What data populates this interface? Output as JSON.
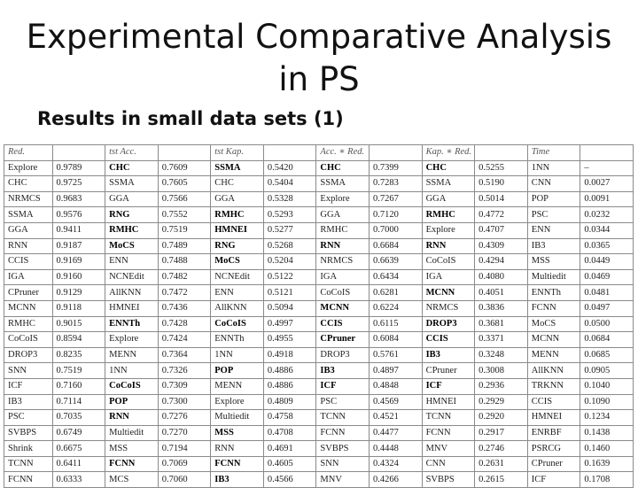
{
  "slide": {
    "title_line1": "Experimental Comparative Analysis",
    "title_line2": "in PS",
    "subtitle": "Results in small data sets (1)"
  },
  "table": {
    "headers": [
      "Red.",
      "",
      "tst Acc.",
      "",
      "tst Kap.",
      "",
      "Acc. ∗ Red.",
      "",
      "Kap. ∗ Red.",
      "",
      "Time",
      ""
    ],
    "rows": [
      [
        "Explore",
        "0.9789",
        "CHC",
        "0.7609",
        "SSMA",
        "0.5420",
        "CHC",
        "0.7399",
        "CHC",
        "0.5255",
        "1NN",
        "–"
      ],
      [
        "CHC",
        "0.9725",
        "SSMA",
        "0.7605",
        "CHC",
        "0.5404",
        "SSMA",
        "0.7283",
        "SSMA",
        "0.5190",
        "CNN",
        "0.0027"
      ],
      [
        "NRMCS",
        "0.9683",
        "GGA",
        "0.7566",
        "GGA",
        "0.5328",
        "Explore",
        "0.7267",
        "GGA",
        "0.5014",
        "POP",
        "0.0091"
      ],
      [
        "SSMA",
        "0.9576",
        "RNG",
        "0.7552",
        "RMHC",
        "0.5293",
        "GGA",
        "0.7120",
        "RMHC",
        "0.4772",
        "PSC",
        "0.0232"
      ],
      [
        "GGA",
        "0.9411",
        "RMHC",
        "0.7519",
        "HMNEI",
        "0.5277",
        "RMHC",
        "0.7000",
        "Explore",
        "0.4707",
        "ENN",
        "0.0344"
      ],
      [
        "RNN",
        "0.9187",
        "MoCS",
        "0.7489",
        "RNG",
        "0.5268",
        "RNN",
        "0.6684",
        "RNN",
        "0.4309",
        "IB3",
        "0.0365"
      ],
      [
        "CCIS",
        "0.9169",
        "ENN",
        "0.7488",
        "MoCS",
        "0.5204",
        "NRMCS",
        "0.6639",
        "CoCoIS",
        "0.4294",
        "MSS",
        "0.0449"
      ],
      [
        "IGA",
        "0.9160",
        "NCNEdit",
        "0.7482",
        "NCNEdit",
        "0.5122",
        "IGA",
        "0.6434",
        "IGA",
        "0.4080",
        "Multiedit",
        "0.0469"
      ],
      [
        "CPruner",
        "0.9129",
        "AllKNN",
        "0.7472",
        "ENN",
        "0.5121",
        "CoCoIS",
        "0.6281",
        "MCNN",
        "0.4051",
        "ENNTh",
        "0.0481"
      ],
      [
        "MCNN",
        "0.9118",
        "HMNEI",
        "0.7436",
        "AllKNN",
        "0.5094",
        "MCNN",
        "0.6224",
        "NRMCS",
        "0.3836",
        "FCNN",
        "0.0497"
      ],
      [
        "RMHC",
        "0.9015",
        "ENNTh",
        "0.7428",
        "CoCoIS",
        "0.4997",
        "CCIS",
        "0.6115",
        "DROP3",
        "0.3681",
        "MoCS",
        "0.0500"
      ],
      [
        "CoCoIS",
        "0.8594",
        "Explore",
        "0.7424",
        "ENNTh",
        "0.4955",
        "CPruner",
        "0.6084",
        "CCIS",
        "0.3371",
        "MCNN",
        "0.0684"
      ],
      [
        "DROP3",
        "0.8235",
        "MENN",
        "0.7364",
        "1NN",
        "0.4918",
        "DROP3",
        "0.5761",
        "IB3",
        "0.3248",
        "MENN",
        "0.0685"
      ],
      [
        "SNN",
        "0.7519",
        "1NN",
        "0.7326",
        "POP",
        "0.4886",
        "IB3",
        "0.4897",
        "CPruner",
        "0.3008",
        "AllKNN",
        "0.0905"
      ],
      [
        "ICF",
        "0.7160",
        "CoCoIS",
        "0.7309",
        "MENN",
        "0.4886",
        "ICF",
        "0.4848",
        "ICF",
        "0.2936",
        "TRKNN",
        "0.1040"
      ],
      [
        "IB3",
        "0.7114",
        "POP",
        "0.7300",
        "Explore",
        "0.4809",
        "PSC",
        "0.4569",
        "HMNEI",
        "0.2929",
        "CCIS",
        "0.1090"
      ],
      [
        "PSC",
        "0.7035",
        "RNN",
        "0.7276",
        "Multiedit",
        "0.4758",
        "TCNN",
        "0.4521",
        "TCNN",
        "0.2920",
        "HMNEI",
        "0.1234"
      ],
      [
        "SVBPS",
        "0.6749",
        "Multiedit",
        "0.7270",
        "MSS",
        "0.4708",
        "FCNN",
        "0.4477",
        "FCNN",
        "0.2917",
        "ENRBF",
        "0.1438"
      ],
      [
        "Shrink",
        "0.6675",
        "MSS",
        "0.7194",
        "RNN",
        "0.4691",
        "SVBPS",
        "0.4448",
        "MNV",
        "0.2746",
        "PSRCG",
        "0.1460"
      ],
      [
        "TCNN",
        "0.6411",
        "FCNN",
        "0.7069",
        "FCNN",
        "0.4605",
        "SNN",
        "0.4324",
        "CNN",
        "0.2631",
        "CPruner",
        "0.1639"
      ],
      [
        "FCNN",
        "0.6333",
        "MCS",
        "0.7060",
        "IB3",
        "0.4566",
        "MNV",
        "0.4266",
        "SVBPS",
        "0.2615",
        "ICF",
        "0.1708"
      ]
    ],
    "bold_cells": [
      [
        0,
        2
      ],
      [
        0,
        4
      ],
      [
        0,
        6
      ],
      [
        0,
        8
      ],
      [
        3,
        2
      ],
      [
        3,
        4
      ],
      [
        3,
        8
      ],
      [
        4,
        2
      ],
      [
        4,
        4
      ],
      [
        5,
        2
      ],
      [
        5,
        4
      ],
      [
        5,
        6
      ],
      [
        5,
        8
      ],
      [
        6,
        4
      ],
      [
        8,
        8
      ],
      [
        9,
        6
      ],
      [
        10,
        2
      ],
      [
        10,
        4
      ],
      [
        10,
        6
      ],
      [
        10,
        8
      ],
      [
        11,
        6
      ],
      [
        11,
        8
      ],
      [
        12,
        8
      ],
      [
        13,
        4
      ],
      [
        13,
        6
      ],
      [
        14,
        2
      ],
      [
        14,
        6
      ],
      [
        14,
        8
      ],
      [
        15,
        2
      ],
      [
        16,
        2
      ],
      [
        17,
        4
      ],
      [
        19,
        2
      ],
      [
        19,
        4
      ],
      [
        20,
        4
      ]
    ]
  }
}
